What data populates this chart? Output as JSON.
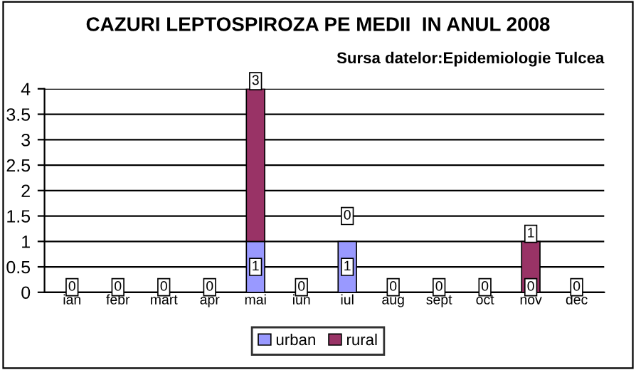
{
  "chart_data": {
    "type": "bar",
    "title": "CAZURI LEPTOSPIROZA PE MEDII  IN ANUL 2008",
    "subtitle": "Sursa datelor:Epidemiologie Tulcea",
    "categories": [
      "ian",
      "febr",
      "mart",
      "apr",
      "mai",
      "iun",
      "iul",
      "aug",
      "sept",
      "oct",
      "nov",
      "dec"
    ],
    "stacked": true,
    "series": [
      {
        "name": "urban",
        "color": "#9999ff",
        "values": [
          0,
          0,
          0,
          0,
          1,
          0,
          1,
          0,
          0,
          0,
          0,
          0
        ],
        "value_labels": [
          "0",
          "0",
          "0",
          "0",
          "1",
          "0",
          "1",
          "0",
          "0",
          "0",
          "0",
          "0"
        ]
      },
      {
        "name": "rural",
        "color": "#993366",
        "values": [
          0,
          0,
          0,
          0,
          3,
          0,
          0,
          0,
          0,
          0,
          1,
          0
        ],
        "value_labels": [
          null,
          null,
          null,
          null,
          "3",
          null,
          "0",
          null,
          null,
          null,
          "1",
          null
        ]
      }
    ],
    "ylim": [
      0,
      4
    ],
    "yticks": [
      0,
      0.5,
      1,
      1.5,
      2,
      2.5,
      3,
      3.5,
      4
    ],
    "grid": "y",
    "legend": "bottom"
  }
}
